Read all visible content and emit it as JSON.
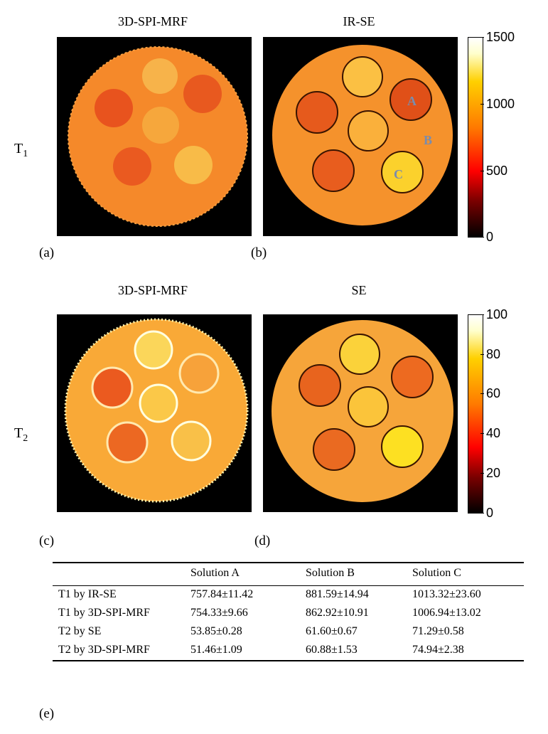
{
  "figure": {
    "row1": {
      "label_main": "T",
      "label_sub": "1",
      "left_title": "3D-SPI-MRF",
      "right_title": "IR-SE",
      "left_panel": "(a)",
      "right_panel": "(b)",
      "colorbar_ticks": [
        "1500",
        "1000",
        "500",
        "0"
      ],
      "vial_labels": [
        "A",
        "B",
        "C"
      ]
    },
    "row2": {
      "label_main": "T",
      "label_sub": "2",
      "left_title": "3D-SPI-MRF",
      "right_title": "SE",
      "left_panel": "(c)",
      "right_panel": "(d)",
      "colorbar_ticks": [
        "100",
        "80",
        "60",
        "40",
        "20",
        "0"
      ]
    },
    "table_panel": "(e)"
  },
  "table": {
    "headers": [
      "",
      "Solution A",
      "Solution B",
      "Solution C"
    ],
    "rows": [
      [
        "T1 by IR-SE",
        "757.84±11.42",
        "881.59±14.94",
        "1013.32±23.60"
      ],
      [
        "T1 by 3D-SPI-MRF",
        "754.33±9.66",
        "862.92±10.91",
        "1006.94±13.02"
      ],
      [
        "T2 by SE",
        "53.85±0.28",
        "61.60±0.67",
        "71.29±0.58"
      ],
      [
        "T2 by 3D-SPI-MRF",
        "51.46±1.09",
        "60.88±1.53",
        "74.94±2.38"
      ]
    ]
  }
}
